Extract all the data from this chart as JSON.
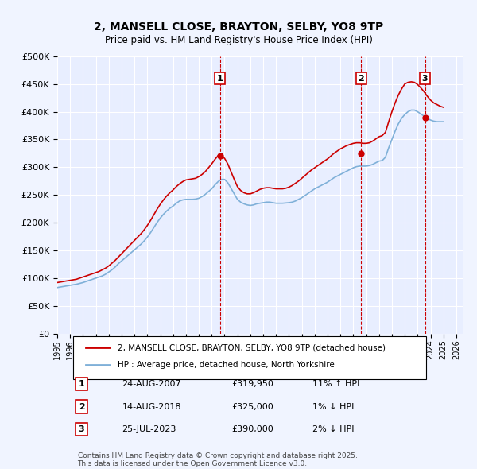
{
  "title": "2, MANSELL CLOSE, BRAYTON, SELBY, YO8 9TP",
  "subtitle": "Price paid vs. HM Land Registry's House Price Index (HPI)",
  "ylabel_ticks": [
    "£0",
    "£50K",
    "£100K",
    "£150K",
    "£200K",
    "£250K",
    "£300K",
    "£350K",
    "£400K",
    "£450K",
    "£500K"
  ],
  "ytick_values": [
    0,
    50000,
    100000,
    150000,
    200000,
    250000,
    300000,
    350000,
    400000,
    450000,
    500000
  ],
  "ylim": [
    0,
    500000
  ],
  "xlim_start": 1995.0,
  "xlim_end": 2026.5,
  "background_color": "#f0f4ff",
  "plot_bg_color": "#e8eeff",
  "grid_color": "#ffffff",
  "red_line_color": "#cc0000",
  "blue_line_color": "#7fb0d8",
  "transaction_color": "#cc0000",
  "transaction_dates": [
    2007.646,
    2018.617,
    2023.569
  ],
  "transaction_prices": [
    319950,
    325000,
    390000
  ],
  "transaction_labels": [
    "1",
    "2",
    "3"
  ],
  "legend_entry1": "2, MANSELL CLOSE, BRAYTON, SELBY, YO8 9TP (detached house)",
  "legend_entry2": "HPI: Average price, detached house, North Yorkshire",
  "table_rows": [
    {
      "num": "1",
      "date": "24-AUG-2007",
      "price": "£319,950",
      "hpi": "11% ↑ HPI"
    },
    {
      "num": "2",
      "date": "14-AUG-2018",
      "price": "£325,000",
      "hpi": "1% ↓ HPI"
    },
    {
      "num": "3",
      "date": "25-JUL-2023",
      "price": "£390,000",
      "hpi": "2% ↓ HPI"
    }
  ],
  "footer": "Contains HM Land Registry data © Crown copyright and database right 2025.\nThis data is licensed under the Open Government Licence v3.0.",
  "hpi_x": [
    1995.0,
    1995.25,
    1995.5,
    1995.75,
    1996.0,
    1996.25,
    1996.5,
    1996.75,
    1997.0,
    1997.25,
    1997.5,
    1997.75,
    1998.0,
    1998.25,
    1998.5,
    1998.75,
    1999.0,
    1999.25,
    1999.5,
    1999.75,
    2000.0,
    2000.25,
    2000.5,
    2000.75,
    2001.0,
    2001.25,
    2001.5,
    2001.75,
    2002.0,
    2002.25,
    2002.5,
    2002.75,
    2003.0,
    2003.25,
    2003.5,
    2003.75,
    2004.0,
    2004.25,
    2004.5,
    2004.75,
    2005.0,
    2005.25,
    2005.5,
    2005.75,
    2006.0,
    2006.25,
    2006.5,
    2006.75,
    2007.0,
    2007.25,
    2007.5,
    2007.75,
    2008.0,
    2008.25,
    2008.5,
    2008.75,
    2009.0,
    2009.25,
    2009.5,
    2009.75,
    2010.0,
    2010.25,
    2010.5,
    2010.75,
    2011.0,
    2011.25,
    2011.5,
    2011.75,
    2012.0,
    2012.25,
    2012.5,
    2012.75,
    2013.0,
    2013.25,
    2013.5,
    2013.75,
    2014.0,
    2014.25,
    2014.5,
    2014.75,
    2015.0,
    2015.25,
    2015.5,
    2015.75,
    2016.0,
    2016.25,
    2016.5,
    2016.75,
    2017.0,
    2017.25,
    2017.5,
    2017.75,
    2018.0,
    2018.25,
    2018.5,
    2018.75,
    2019.0,
    2019.25,
    2019.5,
    2019.75,
    2020.0,
    2020.25,
    2020.5,
    2020.75,
    2021.0,
    2021.25,
    2021.5,
    2021.75,
    2022.0,
    2022.25,
    2022.5,
    2022.75,
    2023.0,
    2023.25,
    2023.5,
    2023.75,
    2024.0,
    2024.25,
    2024.5,
    2024.75,
    2025.0
  ],
  "hpi_y": [
    83000,
    84000,
    85000,
    86000,
    87000,
    88000,
    89000,
    90500,
    92000,
    94000,
    96000,
    98000,
    100000,
    102000,
    104000,
    107000,
    111000,
    115000,
    120000,
    126000,
    131000,
    136000,
    141000,
    146000,
    151000,
    156000,
    161000,
    167000,
    174000,
    182000,
    191000,
    200000,
    208000,
    215000,
    221000,
    226000,
    230000,
    235000,
    239000,
    241000,
    242000,
    242000,
    242000,
    242500,
    244000,
    247000,
    251000,
    256000,
    261000,
    268000,
    274000,
    278000,
    278000,
    272000,
    262000,
    252000,
    242000,
    237000,
    234000,
    232000,
    231000,
    232000,
    234000,
    235000,
    236000,
    237000,
    237000,
    236000,
    235000,
    235000,
    235000,
    235500,
    236000,
    237000,
    239000,
    242000,
    245000,
    249000,
    253000,
    257000,
    261000,
    264000,
    267000,
    270000,
    273000,
    277000,
    281000,
    284000,
    287000,
    290000,
    293000,
    296000,
    299000,
    301000,
    302000,
    302000,
    302000,
    303000,
    305000,
    308000,
    311000,
    312000,
    318000,
    335000,
    350000,
    365000,
    378000,
    388000,
    395000,
    400000,
    403000,
    403000,
    400000,
    396000,
    392000,
    388000,
    385000,
    383000,
    382000,
    382000,
    382000
  ],
  "red_x": [
    1995.0,
    1995.25,
    1995.5,
    1995.75,
    1996.0,
    1996.25,
    1996.5,
    1996.75,
    1997.0,
    1997.25,
    1997.5,
    1997.75,
    1998.0,
    1998.25,
    1998.5,
    1998.75,
    1999.0,
    1999.25,
    1999.5,
    1999.75,
    2000.0,
    2000.25,
    2000.5,
    2000.75,
    2001.0,
    2001.25,
    2001.5,
    2001.75,
    2002.0,
    2002.25,
    2002.5,
    2002.75,
    2003.0,
    2003.25,
    2003.5,
    2003.75,
    2004.0,
    2004.25,
    2004.5,
    2004.75,
    2005.0,
    2005.25,
    2005.5,
    2005.75,
    2006.0,
    2006.25,
    2006.5,
    2006.75,
    2007.0,
    2007.25,
    2007.5,
    2007.75,
    2008.0,
    2008.25,
    2008.5,
    2008.75,
    2009.0,
    2009.25,
    2009.5,
    2009.75,
    2010.0,
    2010.25,
    2010.5,
    2010.75,
    2011.0,
    2011.25,
    2011.5,
    2011.75,
    2012.0,
    2012.25,
    2012.5,
    2012.75,
    2013.0,
    2013.25,
    2013.5,
    2013.75,
    2014.0,
    2014.25,
    2014.5,
    2014.75,
    2015.0,
    2015.25,
    2015.5,
    2015.75,
    2016.0,
    2016.25,
    2016.5,
    2016.75,
    2017.0,
    2017.25,
    2017.5,
    2017.75,
    2018.0,
    2018.25,
    2018.5,
    2018.75,
    2019.0,
    2019.25,
    2019.5,
    2019.75,
    2020.0,
    2020.25,
    2020.5,
    2020.75,
    2021.0,
    2021.25,
    2021.5,
    2021.75,
    2022.0,
    2022.25,
    2022.5,
    2022.75,
    2023.0,
    2023.25,
    2023.5,
    2023.75,
    2024.0,
    2024.25,
    2024.5,
    2024.75,
    2025.0
  ],
  "red_y": [
    92000,
    93000,
    94000,
    95000,
    96000,
    97000,
    98000,
    100000,
    102000,
    104000,
    106000,
    108000,
    110000,
    112000,
    115000,
    118000,
    122000,
    127000,
    132000,
    138000,
    144000,
    150000,
    156000,
    162000,
    168000,
    174000,
    180000,
    187000,
    195000,
    204000,
    214000,
    224000,
    233000,
    241000,
    248000,
    254000,
    259000,
    265000,
    270000,
    274000,
    277000,
    278000,
    279000,
    280000,
    283000,
    287000,
    292000,
    299000,
    306000,
    314000,
    321000,
    319950,
    316000,
    306000,
    292000,
    278000,
    265000,
    258000,
    254000,
    252000,
    252000,
    254000,
    257000,
    260000,
    262000,
    263000,
    263000,
    262000,
    261000,
    261000,
    261000,
    262000,
    264000,
    267000,
    271000,
    275000,
    280000,
    285000,
    290000,
    295000,
    299000,
    303000,
    307000,
    311000,
    315000,
    320000,
    325000,
    329000,
    333000,
    336000,
    339000,
    341000,
    343000,
    344000,
    344000,
    343000,
    343000,
    344000,
    347000,
    351000,
    355000,
    357000,
    363000,
    382000,
    400000,
    416000,
    430000,
    441000,
    450000,
    453000,
    454000,
    453000,
    449000,
    443000,
    436000,
    428000,
    421000,
    416000,
    413000,
    410000,
    408000
  ]
}
